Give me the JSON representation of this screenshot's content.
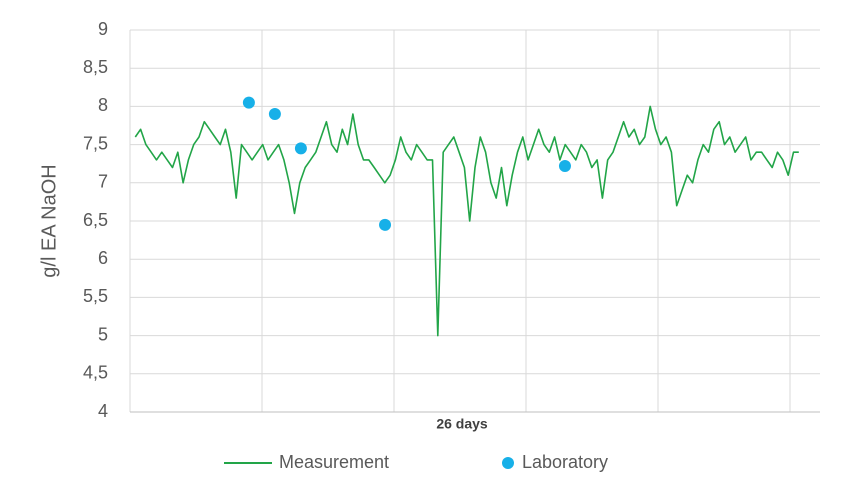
{
  "chart_data": {
    "type": "line",
    "x_label": "26 days",
    "y_label": "g/l EA NaOH",
    "xlim": [
      0,
      26
    ],
    "ylim": [
      4,
      9
    ],
    "yticks": [
      4,
      {
        "value": 4.5,
        "label": "4,5"
      },
      5,
      {
        "value": 5.5,
        "label": "5,5"
      },
      6,
      {
        "value": 6.5,
        "label": "6,5"
      },
      7,
      {
        "value": 7.5,
        "label": "7,5"
      },
      8,
      {
        "value": 8.5,
        "label": "8,5"
      },
      9
    ],
    "grid": true,
    "series": [
      {
        "name": "Measurement",
        "type": "line",
        "color": "#22a548",
        "x": [
          0.2,
          0.4,
          0.6,
          0.8,
          1.0,
          1.2,
          1.4,
          1.6,
          1.8,
          2.0,
          2.2,
          2.4,
          2.6,
          2.8,
          3.0,
          3.2,
          3.4,
          3.6,
          3.8,
          4.0,
          4.2,
          4.4,
          4.6,
          4.8,
          5.0,
          5.2,
          5.4,
          5.6,
          5.8,
          6.0,
          6.2,
          6.4,
          6.6,
          6.8,
          7.0,
          7.2,
          7.4,
          7.6,
          7.8,
          8.0,
          8.2,
          8.4,
          8.6,
          8.8,
          9.0,
          9.2,
          9.4,
          9.6,
          9.8,
          10.0,
          10.2,
          10.4,
          10.6,
          10.8,
          11.0,
          11.2,
          11.4,
          11.6,
          11.8,
          12.0,
          12.2,
          12.4,
          12.6,
          12.8,
          13.0,
          13.2,
          13.4,
          13.6,
          13.8,
          14.0,
          14.2,
          14.4,
          14.6,
          14.8,
          15.0,
          15.2,
          15.4,
          15.6,
          15.8,
          16.0,
          16.2,
          16.4,
          16.6,
          16.8,
          17.0,
          17.2,
          17.4,
          17.6,
          17.8,
          18.0,
          18.2,
          18.4,
          18.6,
          18.8,
          19.0,
          19.2,
          19.4,
          19.6,
          19.8,
          20.0,
          20.2,
          20.4,
          20.6,
          20.8,
          21.0,
          21.2,
          21.4,
          21.6,
          21.8,
          22.0,
          22.2,
          22.4,
          22.6,
          22.8,
          23.0,
          23.2,
          23.4,
          23.6,
          23.8,
          24.0,
          24.2,
          24.4,
          24.6,
          24.8,
          25.0,
          25.2
        ],
        "values": [
          7.6,
          7.7,
          7.5,
          7.4,
          7.3,
          7.4,
          7.3,
          7.2,
          7.4,
          7.0,
          7.3,
          7.5,
          7.6,
          7.8,
          7.7,
          7.6,
          7.5,
          7.7,
          7.4,
          6.8,
          7.5,
          7.4,
          7.3,
          7.4,
          7.5,
          7.3,
          7.4,
          7.5,
          7.3,
          7.0,
          6.6,
          7.0,
          7.2,
          7.3,
          7.4,
          7.6,
          7.8,
          7.5,
          7.4,
          7.7,
          7.5,
          7.9,
          7.5,
          7.3,
          7.3,
          7.2,
          7.1,
          7.0,
          7.1,
          7.3,
          7.6,
          7.4,
          7.3,
          7.5,
          7.4,
          7.3,
          7.3,
          5.0,
          7.4,
          7.5,
          7.6,
          7.4,
          7.2,
          6.5,
          7.2,
          7.6,
          7.4,
          7.0,
          6.8,
          7.2,
          6.7,
          7.1,
          7.4,
          7.6,
          7.3,
          7.5,
          7.7,
          7.5,
          7.4,
          7.6,
          7.3,
          7.5,
          7.4,
          7.3,
          7.5,
          7.4,
          7.2,
          7.3,
          6.8,
          7.3,
          7.4,
          7.6,
          7.8,
          7.6,
          7.7,
          7.5,
          7.6,
          8.0,
          7.7,
          7.5,
          7.6,
          7.4,
          6.7,
          6.9,
          7.1,
          7.0,
          7.3,
          7.5,
          7.4,
          7.7,
          7.8,
          7.5,
          7.6,
          7.4,
          7.5,
          7.6,
          7.3,
          7.4,
          7.4,
          7.3,
          7.2,
          7.4,
          7.3,
          7.1,
          7.4,
          7.4
        ]
      },
      {
        "name": "Laboratory",
        "type": "scatter",
        "color": "#17b0e8",
        "x": [
          4.48,
          5.46,
          6.44,
          9.61,
          16.39
        ],
        "values": [
          8.05,
          7.9,
          7.45,
          6.45,
          7.22
        ]
      }
    ]
  }
}
